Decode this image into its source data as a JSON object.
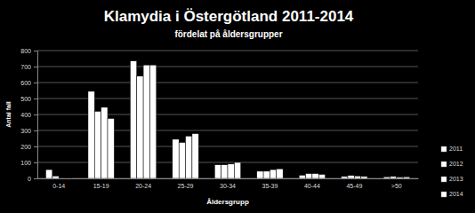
{
  "chart_data": {
    "type": "bar",
    "title": "Klamydia i Östergötland 2011-2014",
    "subtitle": "fördelat på åldersgrupper",
    "x_label": "Åldersgrupp",
    "y_label": "Antal fall",
    "categories": [
      "0-14",
      "15-19",
      "20-24",
      "25-29",
      "30-34",
      "35-39",
      "40-44",
      "45-49",
      ">50"
    ],
    "series": [
      {
        "name": "2011",
        "color": "#ffffff",
        "values": [
          55,
          545,
          735,
          245,
          85,
          45,
          20,
          12,
          10
        ]
      },
      {
        "name": "2012",
        "color": "#ffffff",
        "values": [
          15,
          420,
          640,
          225,
          85,
          45,
          30,
          18,
          12
        ]
      },
      {
        "name": "2013",
        "color": "#ffffff",
        "values": [
          3,
          445,
          710,
          265,
          90,
          55,
          30,
          15,
          8
        ]
      },
      {
        "name": "2014",
        "color": "#ffffff",
        "values": [
          2,
          375,
          710,
          280,
          100,
          60,
          25,
          12,
          10
        ]
      }
    ],
    "ylim": [
      0,
      800
    ],
    "yticks": [
      0,
      100,
      200,
      300,
      400,
      500,
      600,
      700,
      800
    ],
    "grid": true,
    "legend": "right"
  }
}
